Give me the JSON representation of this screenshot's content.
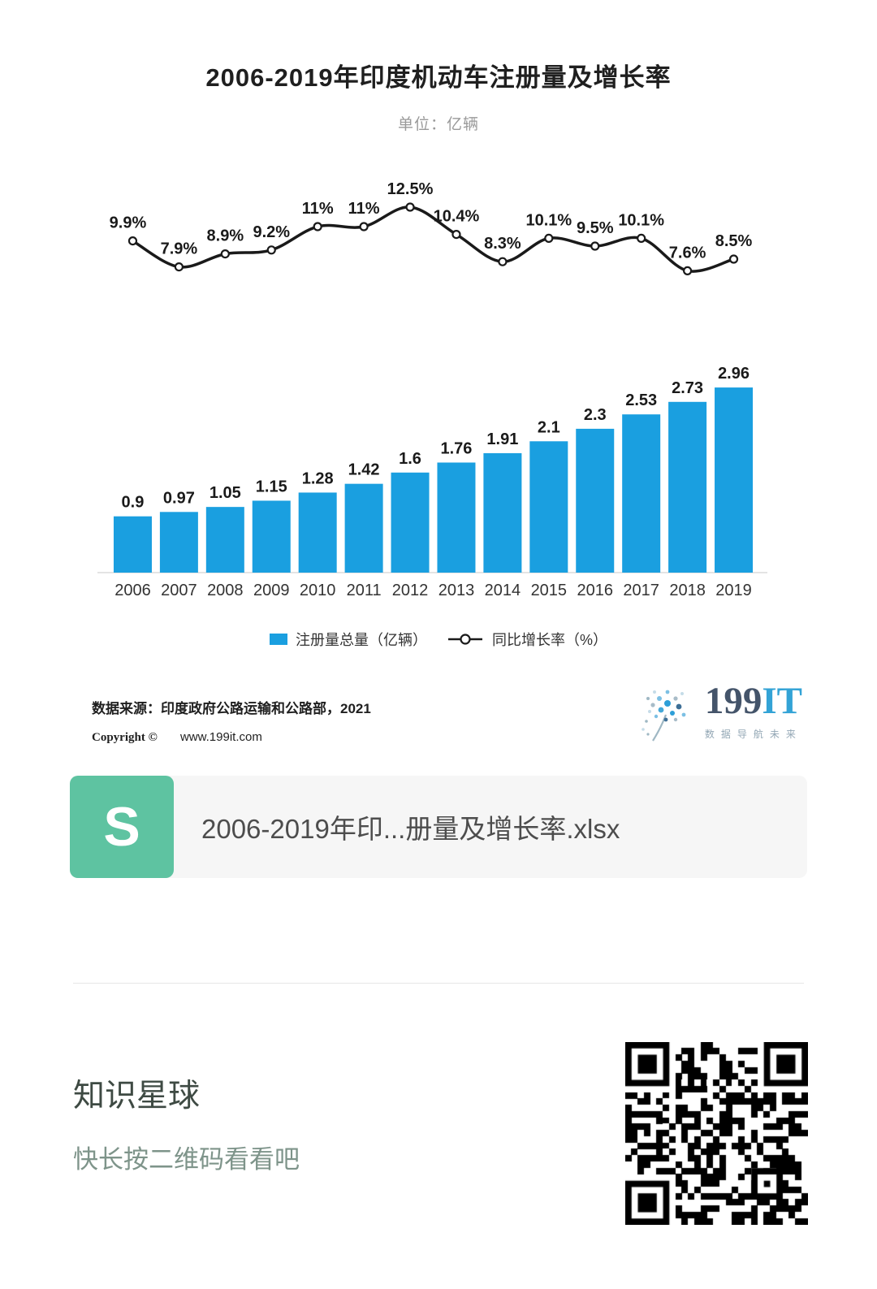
{
  "header": {
    "title": "2006-2019年印度机动车注册量及增长率",
    "subtitle": "单位：亿辆"
  },
  "chart_data": {
    "type": "bar+line",
    "title": "2006-2019年印度机动车注册量及增长率",
    "unit": "亿辆",
    "categories": [
      "2006",
      "2007",
      "2008",
      "2009",
      "2010",
      "2011",
      "2012",
      "2013",
      "2014",
      "2015",
      "2016",
      "2017",
      "2018",
      "2019"
    ],
    "series": [
      {
        "name": "注册量总量（亿辆）",
        "type": "bar",
        "color": "#1A9FE0",
        "values": [
          0.9,
          0.97,
          1.05,
          1.15,
          1.28,
          1.42,
          1.6,
          1.76,
          1.91,
          2.1,
          2.3,
          2.53,
          2.73,
          2.96
        ],
        "labels": [
          "0.9",
          "0.97",
          "1.05",
          "1.15",
          "1.28",
          "1.42",
          "1.6",
          "1.76",
          "1.91",
          "2.1",
          "2.3",
          "2.53",
          "2.73",
          "2.96"
        ]
      },
      {
        "name": "同比增长率（%）",
        "type": "line",
        "color": "#1a1a1a",
        "values": [
          9.9,
          7.9,
          8.9,
          9.2,
          11,
          11,
          12.5,
          10.4,
          8.3,
          10.1,
          9.5,
          10.1,
          7.6,
          8.5
        ],
        "labels": [
          "9.9%",
          "7.9%",
          "8.9%",
          "9.2%",
          "11%",
          "11%",
          "12.5%",
          "10.4%",
          "8.3%",
          "10.1%",
          "9.5%",
          "10.1%",
          "7.6%",
          "8.5%"
        ]
      }
    ],
    "legend_position": "bottom",
    "value_axis_visible": false,
    "data_labels": true,
    "grid": false,
    "bar_ylim": [
      0,
      3.2
    ],
    "line_ylim": [
      7,
      13
    ]
  },
  "footer": {
    "source": "数据来源：印度政府公路运输和公路部，2021",
    "copyright_label": "Copyright ©",
    "copyright_site": "www.199it.com"
  },
  "logo": {
    "brand_199": "199",
    "brand_it": "IT",
    "tagline": "数据导航未来"
  },
  "attachment": {
    "icon_letter": "S",
    "filename": "2006-2019年印...册量及增长率.xlsx"
  },
  "promo": {
    "title": "知识星球",
    "subtitle": "快长按二维码看看吧"
  }
}
